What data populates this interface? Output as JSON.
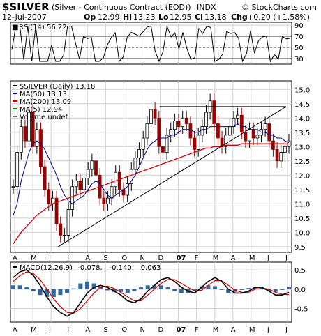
{
  "header": {
    "symbol": "$SILVER",
    "name": "(Silver - Continuous Contract (EOD))",
    "exchange": "INDX",
    "source": "© StockCharts.com",
    "date": "12-Jul-2007",
    "op_label": "Op",
    "op_value": "12.99",
    "hi_label": "Hi",
    "hi_value": "13.23",
    "lo_label": "Lo",
    "lo_value": "12.95",
    "cl_label": "Cl",
    "cl_value": "13.18",
    "chg_label": "Chg",
    "chg_value": "+0.20 (+1.58%)"
  },
  "colors": {
    "ma50": "#00008B",
    "ma200": "#CC0000",
    "ma5": "#008000",
    "up": "#000000",
    "down": "#990000",
    "rsi_fill": "#339933",
    "macd_hist": "#336699",
    "macd_signal": "#CC0000",
    "macd_value3": "#3399CC"
  },
  "chart_data": [
    {
      "type": "line",
      "panel": "RSI",
      "title": "RSI(14) 56.22",
      "y_ticks": [
        30,
        50,
        70,
        90
      ],
      "ylim": [
        20,
        95
      ],
      "reference_lines": [
        30,
        50,
        70
      ],
      "last_value": 56.22
    },
    {
      "type": "candlestick",
      "panel": "Price",
      "legend": [
        {
          "label": "$SILVER (Daily) 13.18",
          "color": "#000000"
        },
        {
          "label": "MA(50) 13.13",
          "color": "#00008B"
        },
        {
          "label": "MA(200) 13.09",
          "color": "#CC0000"
        },
        {
          "label": "MA(5) 12.94",
          "color": "#008000"
        },
        {
          "label": "Volume undef",
          "color": "#000000"
        }
      ],
      "y_ticks": [
        9.5,
        10.0,
        10.5,
        11.0,
        11.5,
        12.0,
        12.5,
        13.0,
        13.5,
        14.0,
        14.5,
        15.0
      ],
      "ylim": [
        9.3,
        15.3
      ],
      "close_series": [
        11.6,
        12.8,
        13.7,
        13.2,
        14.2,
        13.0,
        13.6,
        12.3,
        11.5,
        11.0,
        11.2,
        10.3,
        9.9,
        9.9,
        10.8,
        11.6,
        11.8,
        11.5,
        11.9,
        12.2,
        12.5,
        12.0,
        11.2,
        11.0,
        11.2,
        11.6,
        12.1,
        11.5,
        11.3,
        11.7,
        12.2,
        12.6,
        12.9,
        13.3,
        13.8,
        14.3,
        14.0,
        13.0,
        12.8,
        13.4,
        13.6,
        13.9,
        13.7,
        14.0,
        13.8,
        13.3,
        12.9,
        13.4,
        13.7,
        14.2,
        14.6,
        13.8,
        13.3,
        13.0,
        13.4,
        13.7,
        14.0,
        14.1,
        13.5,
        13.2,
        13.6,
        13.3,
        13.4,
        13.6,
        13.8,
        13.2,
        12.9,
        12.5,
        12.8,
        13.0,
        13.2
      ],
      "ma50_series": [
        10.6,
        11.0,
        11.8,
        12.3,
        12.8,
        13.1,
        13.2,
        13.1,
        12.9,
        12.6,
        12.3,
        12.0,
        11.6,
        11.3,
        11.1,
        11.0,
        11.1,
        11.2,
        11.3,
        11.5,
        11.7,
        11.8,
        11.7,
        11.5,
        11.3,
        11.2,
        11.3,
        11.4,
        11.5,
        11.6,
        11.8,
        12.0,
        12.3,
        12.6,
        12.9,
        13.1,
        13.2,
        13.3,
        13.3,
        13.3,
        13.4,
        13.4,
        13.5,
        13.6,
        13.6,
        13.6,
        13.5,
        13.5,
        13.6,
        13.6,
        13.7,
        13.7,
        13.7,
        13.7,
        13.7,
        13.7,
        13.7,
        13.8,
        13.7,
        13.7,
        13.6,
        13.6,
        13.6,
        13.5,
        13.5,
        13.4,
        13.4,
        13.3,
        13.3,
        13.2,
        13.13
      ],
      "ma200_series": [
        9.6,
        9.8,
        10.0,
        10.15,
        10.3,
        10.45,
        10.6,
        10.7,
        10.8,
        10.9,
        11.0,
        11.05,
        11.1,
        11.15,
        11.2,
        11.25,
        11.3,
        11.35,
        11.4,
        11.45,
        11.5,
        11.55,
        11.6,
        11.65,
        11.7,
        11.75,
        11.8,
        11.85,
        11.9,
        11.95,
        12.0,
        12.05,
        12.1,
        12.15,
        12.2,
        12.25,
        12.3,
        12.35,
        12.4,
        12.45,
        12.5,
        12.55,
        12.6,
        12.65,
        12.7,
        12.75,
        12.8,
        12.85,
        12.9,
        12.95,
        12.95,
        13.0,
        13.0,
        13.0,
        13.05,
        13.05,
        13.05,
        13.05,
        13.1,
        13.1,
        13.1,
        13.1,
        13.1,
        13.1,
        13.1,
        13.1,
        13.1,
        13.1,
        13.1,
        13.1,
        13.09
      ],
      "trendlines": [
        {
          "from": [
            0.17,
            9.5
          ],
          "to": [
            0.98,
            14.4
          ]
        },
        {
          "from": [
            0.53,
            14.4
          ],
          "to": [
            0.98,
            14.4
          ]
        }
      ]
    },
    {
      "type": "line",
      "panel": "MACD",
      "title_prefix": "MACD(12,26,9)",
      "values_text": [
        "-0.078",
        "-0.140",
        "0.063"
      ],
      "y_ticks": [
        -0.5,
        0.0,
        0.5
      ],
      "ylim": [
        -0.85,
        0.7
      ],
      "macd_series": [
        0.3,
        0.45,
        0.5,
        0.35,
        0.1,
        -0.2,
        -0.45,
        -0.6,
        -0.7,
        -0.6,
        -0.35,
        -0.1,
        0.05,
        0.1,
        0.05,
        -0.05,
        -0.15,
        -0.3,
        -0.35,
        -0.25,
        -0.05,
        0.1,
        0.25,
        0.3,
        0.2,
        0.05,
        -0.05,
        -0.1,
        0.05,
        0.2,
        0.3,
        0.2,
        0.0,
        -0.1,
        -0.1,
        -0.05,
        0.05,
        0.05,
        -0.05,
        -0.15,
        -0.15,
        -0.08
      ],
      "signal_series": [
        0.2,
        0.35,
        0.45,
        0.4,
        0.25,
        0.0,
        -0.25,
        -0.45,
        -0.6,
        -0.62,
        -0.5,
        -0.3,
        -0.1,
        0.05,
        0.08,
        0.02,
        -0.08,
        -0.2,
        -0.3,
        -0.3,
        -0.15,
        0.0,
        0.15,
        0.25,
        0.25,
        0.15,
        0.05,
        -0.05,
        -0.03,
        0.1,
        0.22,
        0.22,
        0.1,
        -0.03,
        -0.08,
        -0.08,
        0.0,
        0.03,
        0.0,
        -0.08,
        -0.13,
        -0.14
      ]
    }
  ],
  "x_axis": {
    "months": [
      "A",
      "M",
      "J",
      "J",
      "A",
      "S",
      "O",
      "N",
      "D",
      "07",
      "F",
      "M",
      "A",
      "M",
      "J",
      "J"
    ]
  }
}
